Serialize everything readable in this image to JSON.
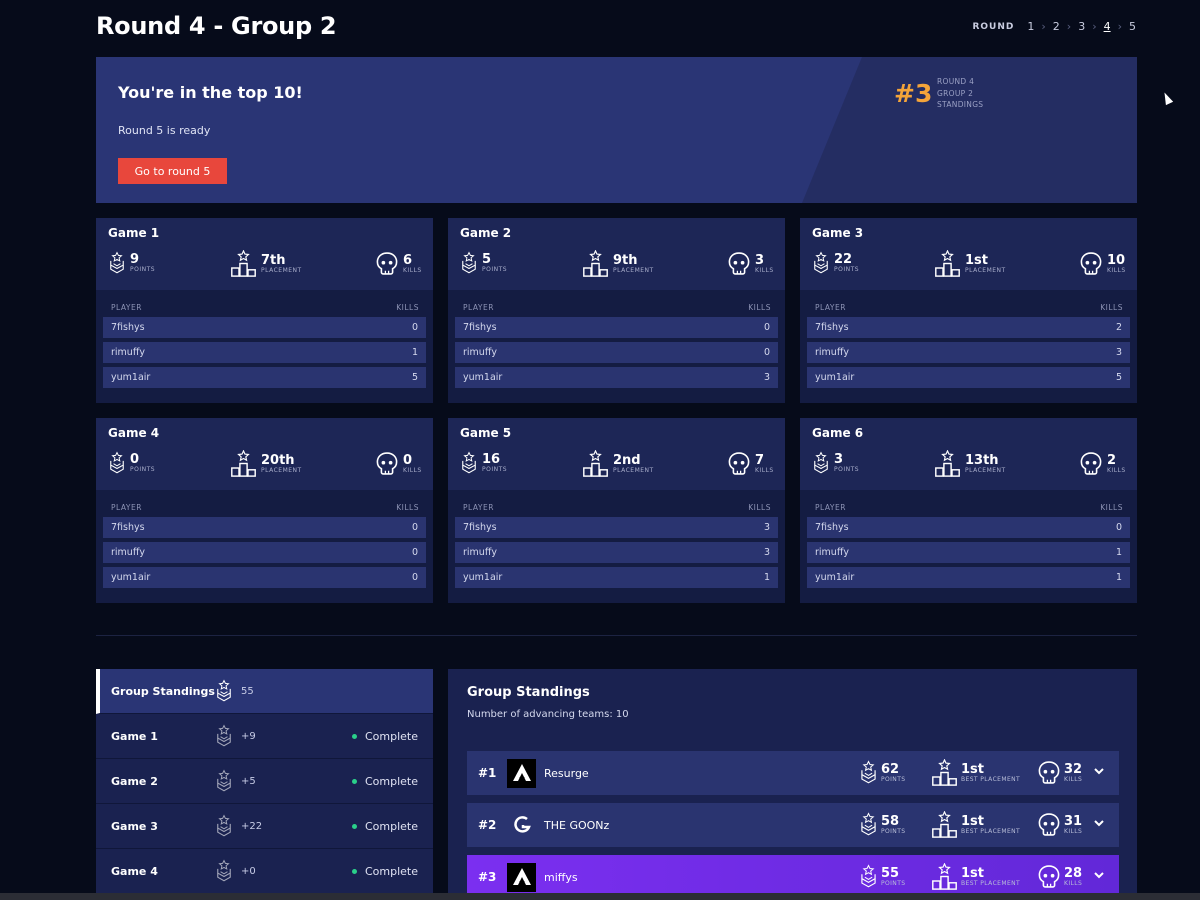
{
  "page": {
    "title": "Round 4 - Group 2"
  },
  "round_nav": {
    "label": "ROUND",
    "rounds": [
      "1",
      "2",
      "3",
      "4",
      "5"
    ],
    "current": "4"
  },
  "banner": {
    "heading": "You're in the top 10!",
    "subtext": "Round 5 is ready",
    "button_label": "Go to round 5",
    "rank": "#3",
    "rank_lines": [
      "ROUND 4",
      "GROUP 2",
      "STANDINGS"
    ]
  },
  "games_labels": {
    "points": "POINTS",
    "placement": "PLACEMENT",
    "kills": "KILLS",
    "player_col": "PLAYER",
    "kills_col": "KILLS"
  },
  "games": [
    {
      "name": "Game 1",
      "points": "9",
      "placement": "7th",
      "kills": "6",
      "players": [
        {
          "name": "7fishys",
          "kills": "0"
        },
        {
          "name": "rimuffy",
          "kills": "1"
        },
        {
          "name": "yum1air",
          "kills": "5"
        }
      ]
    },
    {
      "name": "Game 2",
      "points": "5",
      "placement": "9th",
      "kills": "3",
      "players": [
        {
          "name": "7fishys",
          "kills": "0"
        },
        {
          "name": "rimuffy",
          "kills": "0"
        },
        {
          "name": "yum1air",
          "kills": "3"
        }
      ]
    },
    {
      "name": "Game 3",
      "points": "22",
      "placement": "1st",
      "kills": "10",
      "players": [
        {
          "name": "7fishys",
          "kills": "2"
        },
        {
          "name": "rimuffy",
          "kills": "3"
        },
        {
          "name": "yum1air",
          "kills": "5"
        }
      ]
    },
    {
      "name": "Game 4",
      "points": "0",
      "placement": "20th",
      "kills": "0",
      "players": [
        {
          "name": "7fishys",
          "kills": "0"
        },
        {
          "name": "rimuffy",
          "kills": "0"
        },
        {
          "name": "yum1air",
          "kills": "0"
        }
      ]
    },
    {
      "name": "Game 5",
      "points": "16",
      "placement": "2nd",
      "kills": "7",
      "players": [
        {
          "name": "7fishys",
          "kills": "3"
        },
        {
          "name": "rimuffy",
          "kills": "3"
        },
        {
          "name": "yum1air",
          "kills": "1"
        }
      ]
    },
    {
      "name": "Game 6",
      "points": "3",
      "placement": "13th",
      "kills": "2",
      "players": [
        {
          "name": "7fishys",
          "kills": "0"
        },
        {
          "name": "rimuffy",
          "kills": "1"
        },
        {
          "name": "yum1air",
          "kills": "1"
        }
      ]
    }
  ],
  "sidebar": {
    "items": [
      {
        "label": "Group Standings",
        "points": "55",
        "status": ""
      },
      {
        "label": "Game 1",
        "points": "+9",
        "status": "Complete"
      },
      {
        "label": "Game 2",
        "points": "+5",
        "status": "Complete"
      },
      {
        "label": "Game 3",
        "points": "+22",
        "status": "Complete"
      },
      {
        "label": "Game 4",
        "points": "+0",
        "status": "Complete"
      }
    ]
  },
  "standings": {
    "title": "Group Standings",
    "advancing": "Number of advancing teams: 10",
    "labels": {
      "points": "POINTS",
      "best_placement": "BEST PLACEMENT",
      "kills": "KILLS"
    },
    "teams": [
      {
        "rank": "#1",
        "name": "Resurge",
        "points": "62",
        "best_placement": "1st",
        "kills": "32",
        "logo": "apex-logo-icon"
      },
      {
        "rank": "#2",
        "name": "THE GOONz",
        "points": "58",
        "best_placement": "1st",
        "kills": "31",
        "logo": "goonz-logo-icon"
      },
      {
        "rank": "#3",
        "name": "miffys",
        "points": "55",
        "best_placement": "1st",
        "kills": "28",
        "logo": "apex-logo-icon"
      }
    ]
  },
  "colors": {
    "accent_orange": "#f4a43a",
    "button_red": "#e8473c",
    "highlight_purple": "#7b2ff0",
    "complete_green": "#2ad08a"
  }
}
